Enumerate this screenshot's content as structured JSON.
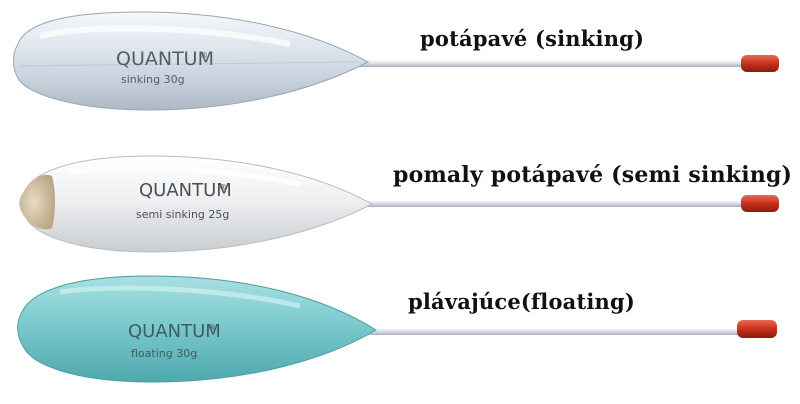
{
  "floats": [
    {
      "label": "potápavé (sinking)",
      "brand": "QUANTUM",
      "registered": "®",
      "weight_text": "sinking  30g",
      "body_color": "#d4dde6",
      "tip_color": "#c8301e"
    },
    {
      "label": "pomaly potápavé (semi sinking)",
      "brand": "QUANTUM",
      "registered": "®",
      "weight_text": "semi sinking 25g",
      "body_color": "#e9ecee",
      "tip_color": "#c8301e"
    },
    {
      "label": "plávajúce(floating)",
      "brand": "QUANTUM",
      "registered": "®",
      "weight_text": "floating  30g",
      "body_color": "#7fcbcf",
      "tip_color": "#c8301e"
    }
  ]
}
